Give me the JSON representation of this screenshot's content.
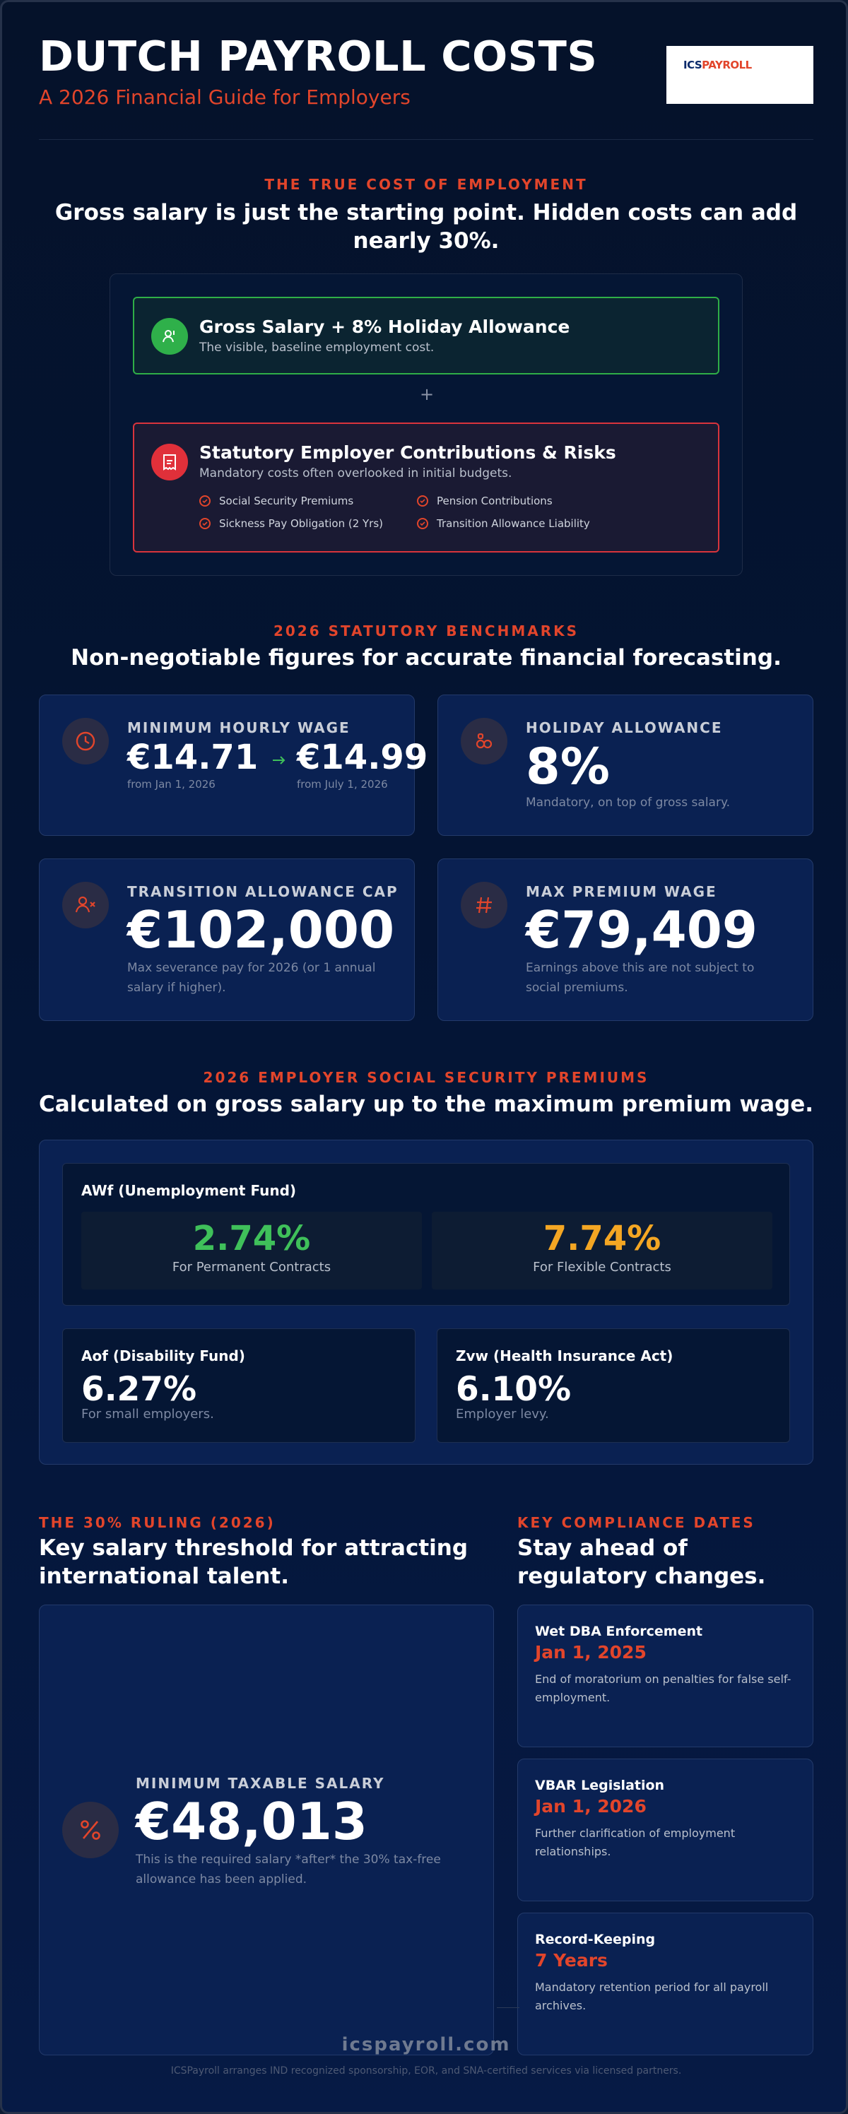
{
  "header": {
    "title": "DUTCH PAYROLL COSTS",
    "subtitle": "A 2026 Financial Guide for Employers",
    "logo_ics": "ICS",
    "logo_payroll": "PAYROLL"
  },
  "true_cost": {
    "kicker": "THE TRUE COST OF EMPLOYMENT",
    "heading_line1": "Gross salary is just the starting point. Hidden costs can add",
    "heading_line2": "nearly 30%.",
    "gross": {
      "icon": "person-money-icon",
      "title": "Gross Salary + 8% Holiday Allowance",
      "desc": "The visible, baseline employment cost."
    },
    "plus": "+",
    "statutory": {
      "icon": "receipt-icon",
      "title": "Statutory Employer Contributions & Risks",
      "desc": "Mandatory costs often overlooked in initial budgets.",
      "items": [
        "Social Security Premiums",
        "Pension Contributions",
        "Sickness Pay Obligation (2 Yrs)",
        "Transition Allowance Liability"
      ]
    }
  },
  "benchmarks": {
    "kicker": "2026 STATUTORY BENCHMARKS",
    "heading": "Non-negotiable figures for accurate financial forecasting.",
    "min_wage": {
      "icon": "clock-icon",
      "label": "MINIMUM HOURLY WAGE",
      "value_jan": "€14.71",
      "note_jan": "from Jan 1, 2026",
      "value_jul": "€14.99",
      "note_jul": "from July 1, 2026"
    },
    "holiday": {
      "icon": "link-icon",
      "label": "HOLIDAY ALLOWANCE",
      "value": "8%",
      "note": "Mandatory, on top of gross salary."
    },
    "transition": {
      "icon": "user-x-icon",
      "label": "TRANSITION ALLOWANCE CAP",
      "value": "€102,000",
      "note_line1": "Max severance pay for 2026 (or 1 annual",
      "note_line2": "salary if higher)."
    },
    "max_premium": {
      "icon": "hash-icon",
      "label": "MAX PREMIUM WAGE",
      "value": "€79,409",
      "note_line1": "Earnings above this are not subject to",
      "note_line2": "social premiums."
    }
  },
  "premiums": {
    "kicker": "2026 EMPLOYER SOCIAL SECURITY PREMIUMS",
    "heading": "Calculated on gross salary up to the maximum premium wage.",
    "awf": {
      "title": "AWf (Unemployment Fund)",
      "permanent_value": "2.74%",
      "permanent_label": "For Permanent Contracts",
      "flexible_value": "7.74%",
      "flexible_label": "For Flexible Contracts",
      "permanent_color": "#3fc05a",
      "flexible_color": "#f4a623"
    },
    "aof": {
      "title": "Aof (Disability Fund)",
      "value": "6.27%",
      "desc": "For small employers."
    },
    "zvw": {
      "title": "Zvw (Health Insurance Act)",
      "value": "6.10%",
      "desc": "Employer levy."
    }
  },
  "ruling": {
    "kicker": "THE 30% RULING (2026)",
    "heading_line1": "Key salary threshold for attracting",
    "heading_line2": "international talent.",
    "icon": "percent-icon",
    "label": "MINIMUM TAXABLE SALARY",
    "value": "€48,013",
    "note_line1": "This is the required salary *after* the 30% tax-free",
    "note_line2": "allowance has been applied."
  },
  "dates": {
    "kicker": "KEY COMPLIANCE DATES",
    "heading_line1": "Stay ahead of",
    "heading_line2": "regulatory changes.",
    "items": [
      {
        "title": "Wet DBA Enforcement",
        "date": "Jan 1, 2025",
        "desc": "End of moratorium on penalties for false self-employment."
      },
      {
        "title": "VBAR Legislation",
        "date": "Jan 1, 2026",
        "desc": "Further clarification of employment relationships."
      },
      {
        "title": "Record-Keeping",
        "date": "7 Years",
        "desc": "Mandatory retention period for all payroll archives."
      }
    ]
  },
  "footer": {
    "site": "icspayroll.com",
    "note": "ICSPayroll arranges IND recognized sponsorship, EOR, and SNA-certified services via licensed partners."
  },
  "colors": {
    "accent": "#e2452b",
    "green": "#2fb04a",
    "red": "#e0303a",
    "background": "#041433"
  }
}
